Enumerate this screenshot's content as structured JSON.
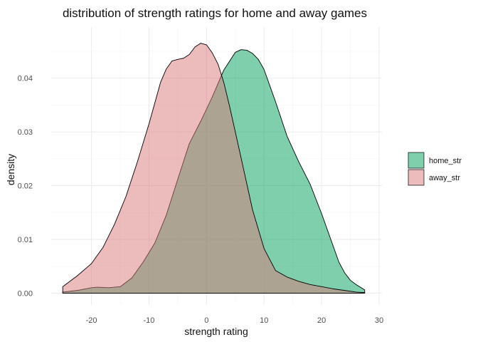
{
  "chart_data": {
    "type": "area",
    "title": "distribution of strength ratings for home and away games",
    "xlabel": "strength rating",
    "ylabel": "density",
    "xlim": [
      -27,
      30.5
    ],
    "ylim": [
      -0.0022,
      0.0495
    ],
    "x_ticks": [
      -20,
      -10,
      0,
      10,
      20,
      30
    ],
    "x_tick_labels": [
      "-20",
      "-10",
      "0",
      "10",
      "20",
      "30"
    ],
    "y_ticks": [
      0.0,
      0.01,
      0.02,
      0.03,
      0.04
    ],
    "y_tick_labels": [
      "0.00",
      "0.01",
      "0.02",
      "0.03",
      "0.04"
    ],
    "grid": true,
    "legend_position": "right",
    "series": [
      {
        "name": "home_str",
        "color": "#00a05a",
        "x": [
          -25,
          -22.5,
          -20,
          -19,
          -17,
          -15,
          -13,
          -11,
          -9,
          -7,
          -5,
          -3,
          -1,
          1,
          3,
          5,
          6,
          7,
          8,
          9,
          10,
          12,
          14,
          16,
          18,
          20,
          22,
          23,
          24,
          25,
          26,
          27.5
        ],
        "y": [
          0.0002,
          0.0005,
          0.001,
          0.0011,
          0.001,
          0.0012,
          0.0028,
          0.0058,
          0.0093,
          0.0145,
          0.0212,
          0.0278,
          0.032,
          0.0365,
          0.0415,
          0.0448,
          0.0453,
          0.0452,
          0.0446,
          0.0435,
          0.0416,
          0.0356,
          0.0292,
          0.0245,
          0.0203,
          0.0148,
          0.0088,
          0.0058,
          0.0038,
          0.0024,
          0.0016,
          0.0006
        ]
      },
      {
        "name": "away_str",
        "color": "#d9777a",
        "x": [
          -25,
          -22.5,
          -20,
          -18,
          -16,
          -14,
          -12,
          -10,
          -8,
          -7,
          -6,
          -5,
          -4,
          -3,
          -2,
          -1,
          0,
          1,
          2,
          3,
          4,
          6,
          8,
          10,
          12,
          14,
          16,
          18,
          20,
          22,
          24,
          26,
          27.5
        ],
        "y": [
          0.0012,
          0.0032,
          0.0055,
          0.0085,
          0.0128,
          0.018,
          0.0245,
          0.0315,
          0.0392,
          0.0417,
          0.0432,
          0.0435,
          0.0437,
          0.0444,
          0.0458,
          0.0465,
          0.0462,
          0.0447,
          0.0426,
          0.0392,
          0.0348,
          0.0252,
          0.0155,
          0.0083,
          0.0042,
          0.003,
          0.0022,
          0.0016,
          0.0012,
          0.0008,
          0.0005,
          0.0002,
          0.0001
        ]
      }
    ]
  }
}
